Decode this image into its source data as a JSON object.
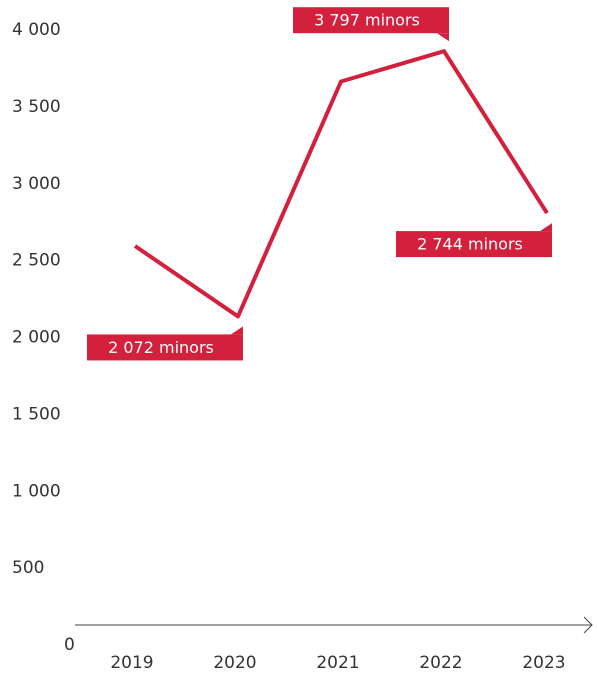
{
  "chart_data": {
    "type": "line",
    "categories": [
      "2019",
      "2020",
      "2021",
      "2022",
      "2023"
    ],
    "series": [
      {
        "name": null,
        "color": "#d2203d",
        "values": [
          2530,
          2072,
          3600,
          3797,
          2744
        ],
        "value_labels": [
          null,
          "2 072 minors",
          null,
          "3 797 minors",
          "2 744 minors"
        ]
      }
    ],
    "ylim": [
      0,
      4000
    ],
    "yticks": [
      0,
      500,
      {
        "value": 1000,
        "label": "1 000"
      },
      {
        "value": 1500,
        "label": "1 500"
      },
      {
        "value": 2000,
        "label": "2 000"
      },
      {
        "value": 2500,
        "label": "2 500"
      },
      {
        "value": 3000,
        "label": "3 000"
      },
      {
        "value": 3500,
        "label": "3 500"
      },
      {
        "value": 4000,
        "label": "4 000"
      }
    ],
    "grid": false
  }
}
